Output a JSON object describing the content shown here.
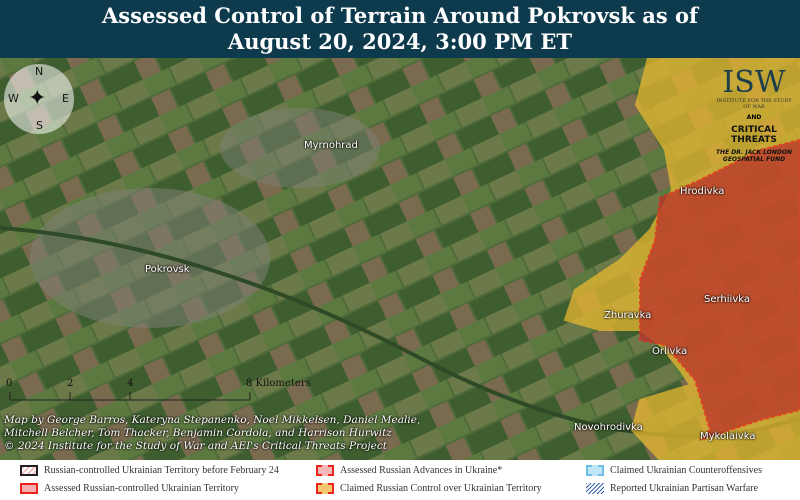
{
  "header": {
    "title_line1": "Assessed Control of Terrain Around Pokrovsk as of",
    "title_line2": "August 20, 2024, 3:00 PM ET"
  },
  "compass": {
    "n": "N",
    "s": "S",
    "e": "E",
    "w": "W"
  },
  "towns": [
    "Myrnohrad",
    "Pokrovsk",
    "Hrodivka",
    "Zhuravka",
    "Serhiivka",
    "Orlivka",
    "Novohrodivka",
    "Mykolaivka"
  ],
  "scale": {
    "ticks": [
      "0",
      "2",
      "4"
    ],
    "end_label": "8 Kilometers"
  },
  "credits": [
    "Map by George Barros, Kateryna Stepanenko, Noel Mikkelsen, Daniel Mealie,",
    "Mitchell Belcher, Tom Thacker, Benjamin Cordola, and Harrison Hurwitz",
    "© 2024 Institute for the Study of War and AEI's Critical Threats Project"
  ],
  "logo": {
    "isw": "ISW",
    "isw_sub": "INSTITUTE FOR THE STUDY OF WAR",
    "and": "AND",
    "ct": "CRITICAL THREATS",
    "fund": "THE DR. JACK LONDON GEOSPATIAL FUND"
  },
  "legend": [
    {
      "label": "Russian-controlled Ukrainian Territory before February 24",
      "color": "#e8a0a0"
    },
    {
      "label": "Assessed Russian-controlled Ukrainian Territory",
      "color": "#e06060"
    },
    {
      "label": "Assessed Russian Advances in Ukraine*",
      "color": "#f0a0a0"
    },
    {
      "label": "Claimed Russian Control over Ukrainian Territory",
      "color": "#f0c060"
    },
    {
      "label": "Claimed Ukrainian Counteroffensives",
      "color": "#a8dcf0"
    },
    {
      "label": "Reported Ukrainian Partisan Warfare",
      "color": "#5a7fc0"
    }
  ],
  "colors": {
    "header": "#0e3a4d",
    "claimed": "#e8b830",
    "controlled": "#b8302a",
    "border": "#e8241c"
  }
}
